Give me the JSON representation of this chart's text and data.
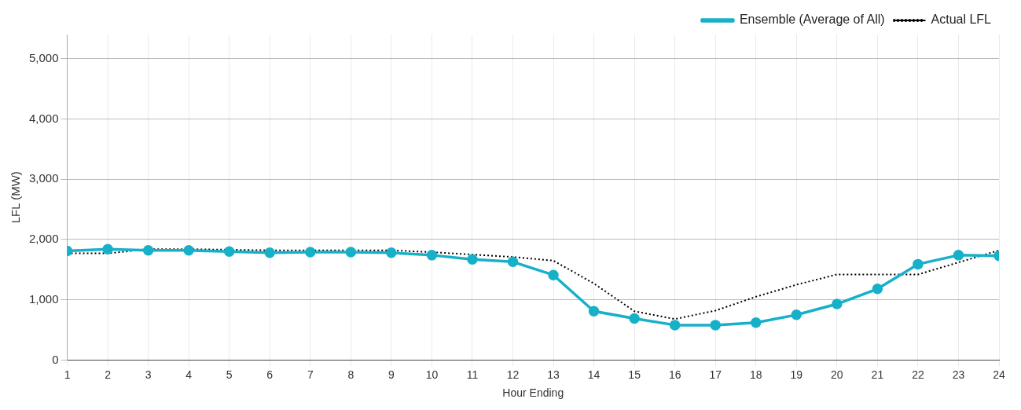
{
  "chart_data": {
    "type": "line",
    "xlabel": "Hour Ending",
    "ylabel": "LFL (MW)",
    "x": [
      1,
      2,
      3,
      4,
      5,
      6,
      7,
      8,
      9,
      10,
      11,
      12,
      13,
      14,
      15,
      16,
      17,
      18,
      19,
      20,
      21,
      22,
      23,
      24
    ],
    "xlim": [
      1,
      24
    ],
    "xticks": [
      1,
      2,
      3,
      4,
      5,
      6,
      7,
      8,
      9,
      10,
      11,
      12,
      13,
      14,
      15,
      16,
      17,
      18,
      19,
      20,
      21,
      22,
      23,
      24
    ],
    "ylim": [
      0,
      5400
    ],
    "yticks": [
      {
        "value": 0,
        "label": "0"
      },
      {
        "value": 1000,
        "label": "1,000"
      },
      {
        "value": 2000,
        "label": "2,000"
      },
      {
        "value": 3000,
        "label": "3,000"
      },
      {
        "value": 4000,
        "label": "4,000"
      },
      {
        "value": 5000,
        "label": "5,000"
      }
    ],
    "grid": true,
    "legend": "top right",
    "series": [
      {
        "name": "Ensemble (Average of All)",
        "color": "#17b0c9",
        "marker": "circle",
        "line_style": "solid",
        "values": [
          1810,
          1840,
          1820,
          1820,
          1800,
          1780,
          1790,
          1790,
          1780,
          1740,
          1670,
          1630,
          1410,
          810,
          690,
          580,
          580,
          620,
          750,
          930,
          1180,
          1590,
          1740,
          1730
        ]
      },
      {
        "name": "Actual LFL",
        "color": "#000000",
        "marker": "none",
        "line_style": "dotted",
        "values": [
          1770,
          1770,
          1840,
          1840,
          1830,
          1820,
          1820,
          1820,
          1820,
          1790,
          1750,
          1710,
          1650,
          1270,
          810,
          680,
          820,
          1050,
          1250,
          1420,
          1420,
          1420,
          1620,
          1820
        ]
      }
    ]
  }
}
